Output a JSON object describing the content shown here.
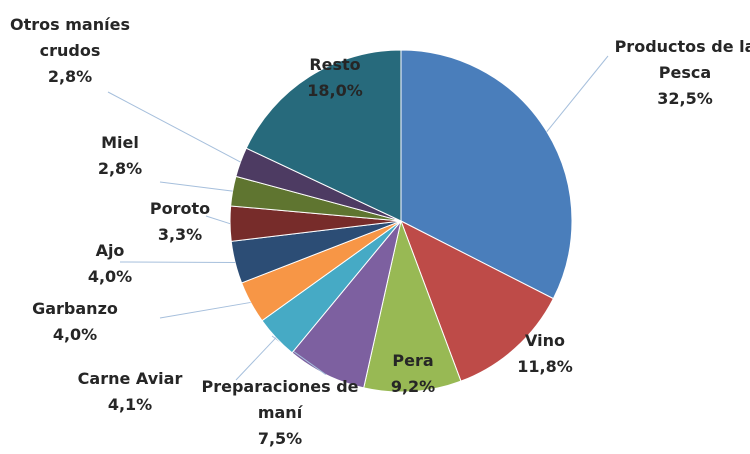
{
  "chart_data": {
    "type": "pie",
    "categories": [
      "Productos de la Pesca",
      "Vino",
      "Pera",
      "Preparaciones de maní",
      "Carne Aviar",
      "Garbanzo",
      "Ajo",
      "Poroto",
      "Miel",
      "Otros maníes crudos",
      "Resto"
    ],
    "values": [
      32.5,
      11.8,
      9.2,
      7.5,
      4.1,
      4.0,
      4.0,
      3.3,
      2.8,
      2.8,
      18.0
    ],
    "value_labels": [
      "32,5%",
      "11,8%",
      "9,2%",
      "7,5%",
      "4,1%",
      "4,0%",
      "4,0%",
      "3,3%",
      "2,8%",
      "2,8%",
      "18,0%"
    ],
    "colors": [
      "#4a7ebb",
      "#be4b48",
      "#98b954",
      "#7d60a0",
      "#46aac5",
      "#f79646",
      "#2c4d75",
      "#772c2a",
      "#5f7530",
      "#4d3b62",
      "#276a7c"
    ]
  }
}
